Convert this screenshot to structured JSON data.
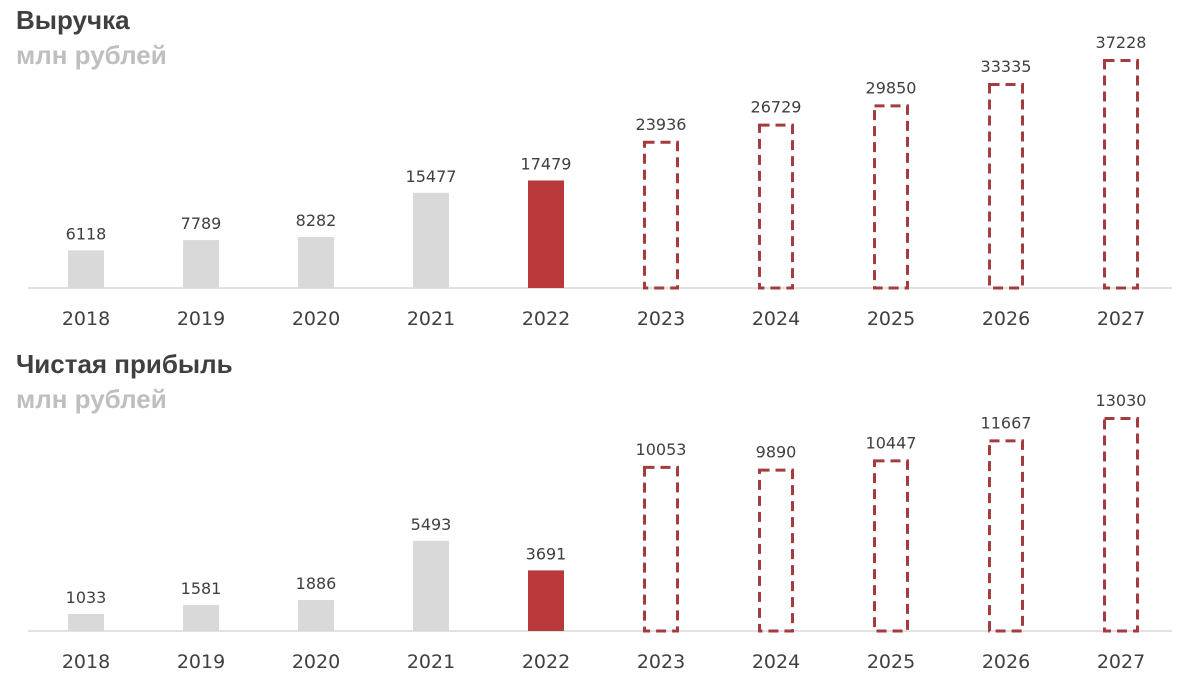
{
  "colors": {
    "actual": "#d9d9d9",
    "highlight": "#b8383b",
    "forecast_outline": "#a33b3f",
    "axis": "#d9d9d9",
    "title": "#404040",
    "subtitle": "#bfbfbf",
    "label": "#404040"
  },
  "chart_data": [
    {
      "type": "bar",
      "title": "Выручка",
      "subtitle": "млн рублей",
      "categories": [
        "2018",
        "2019",
        "2020",
        "2021",
        "2022",
        "2023",
        "2024",
        "2025",
        "2026",
        "2027"
      ],
      "values": [
        6118,
        7789,
        8282,
        15477,
        17479,
        23936,
        26729,
        29850,
        33335,
        37228
      ],
      "bar_styles": [
        "actual",
        "actual",
        "actual",
        "actual",
        "highlight",
        "forecast",
        "forecast",
        "forecast",
        "forecast",
        "forecast"
      ],
      "ylim": [
        0,
        37228
      ],
      "grid": false,
      "legend": "none"
    },
    {
      "type": "bar",
      "title": "Чистая прибыль",
      "subtitle": "млн рублей",
      "categories": [
        "2018",
        "2019",
        "2020",
        "2021",
        "2022",
        "2023",
        "2024",
        "2025",
        "2026",
        "2027"
      ],
      "values": [
        1033,
        1581,
        1886,
        5493,
        3691,
        10053,
        9890,
        10447,
        11667,
        13030
      ],
      "bar_styles": [
        "actual",
        "actual",
        "actual",
        "actual",
        "highlight",
        "forecast",
        "forecast",
        "forecast",
        "forecast",
        "forecast"
      ],
      "ylim": [
        0,
        13030
      ],
      "grid": false,
      "legend": "none"
    }
  ]
}
